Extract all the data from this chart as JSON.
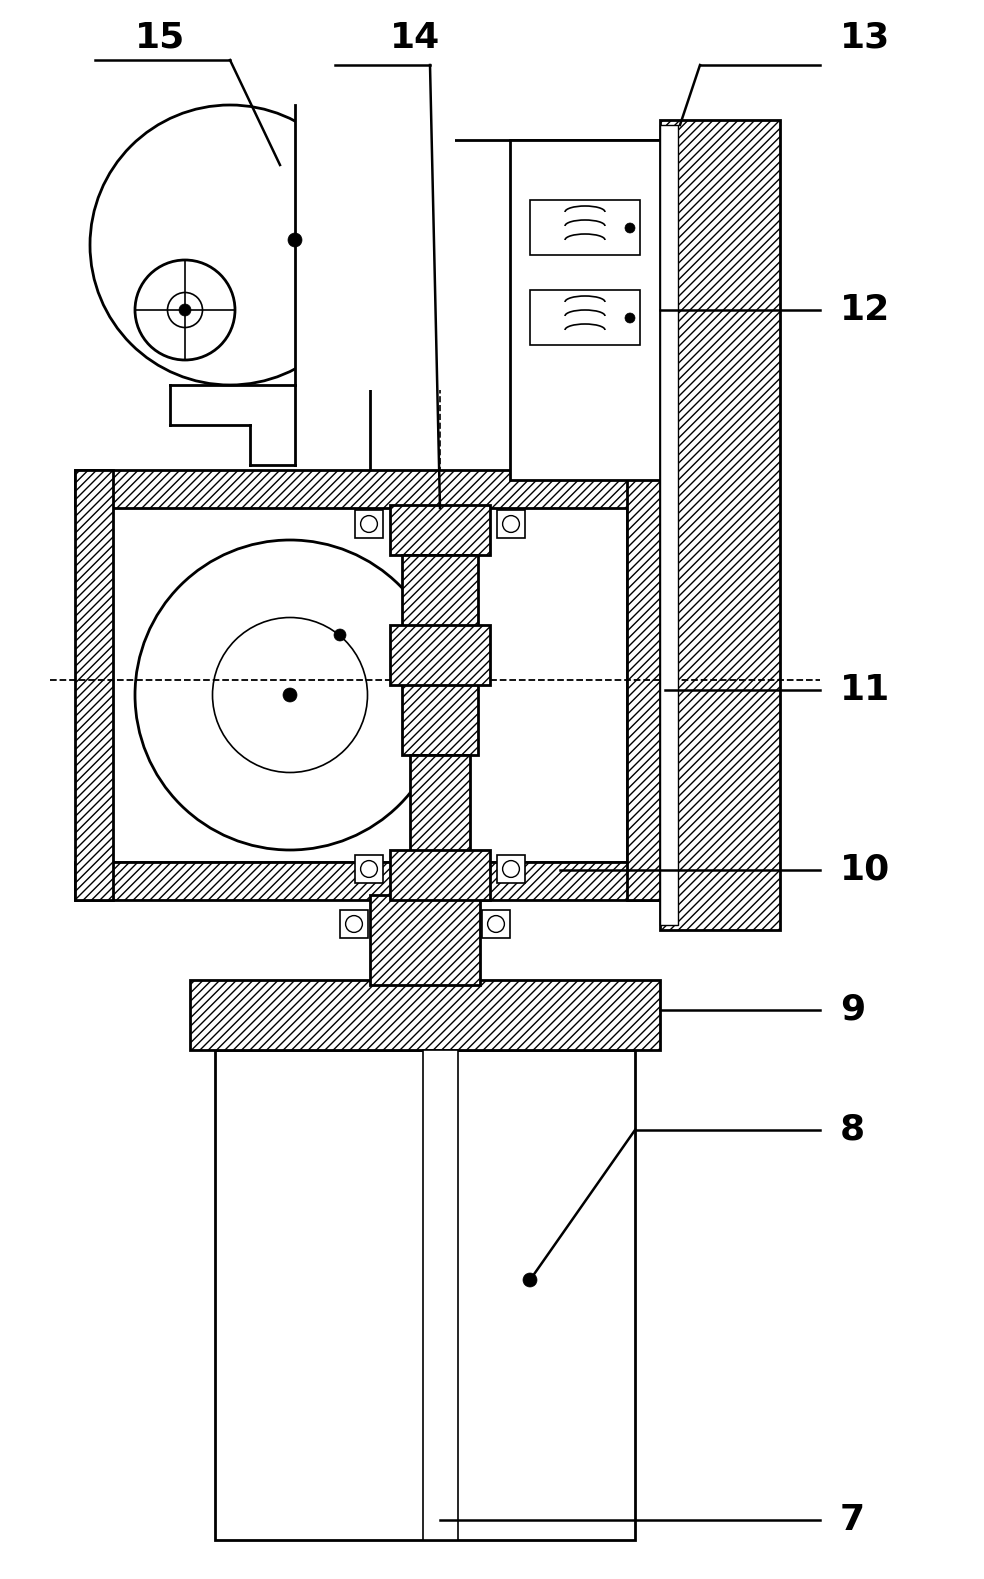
{
  "bg_color": "#ffffff",
  "line_color": "#000000",
  "figsize": [
    9.84,
    15.79
  ],
  "dpi": 100,
  "lw_main": 2.0,
  "lw_thin": 1.2,
  "label_fs": 26
}
